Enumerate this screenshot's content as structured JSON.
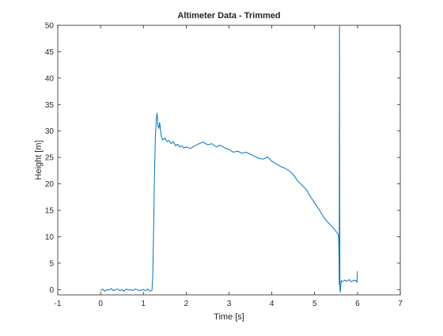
{
  "chart_data": {
    "type": "line",
    "title": "Altimeter Data - Trimmed",
    "xlabel": "Time [s]",
    "ylabel": "Height [m]",
    "xlim": [
      -1,
      7
    ],
    "ylim": [
      -1,
      50
    ],
    "xticks": [
      -1,
      0,
      1,
      2,
      3,
      4,
      5,
      6,
      7
    ],
    "yticks": [
      0,
      5,
      10,
      15,
      20,
      25,
      30,
      35,
      40,
      45,
      50
    ],
    "grid": false,
    "legend": "none",
    "line_color": "#0072bd",
    "series": [
      {
        "x": [
          0.0,
          0.05,
          0.1,
          0.15,
          0.2,
          0.25,
          0.3,
          0.35,
          0.4,
          0.45,
          0.5,
          0.55,
          0.6,
          0.65,
          0.7,
          0.75,
          0.8,
          0.85,
          0.9,
          0.95,
          1.0,
          1.05,
          1.1,
          1.15,
          1.2,
          1.22,
          1.24,
          1.26,
          1.28,
          1.3,
          1.32,
          1.34,
          1.36,
          1.38,
          1.4,
          1.42,
          1.45,
          1.5,
          1.55,
          1.6,
          1.65,
          1.7,
          1.75,
          1.8,
          1.85,
          1.9,
          1.95,
          2.0,
          2.1,
          2.2,
          2.3,
          2.4,
          2.5,
          2.6,
          2.7,
          2.8,
          2.9,
          3.0,
          3.1,
          3.2,
          3.3,
          3.4,
          3.5,
          3.6,
          3.7,
          3.8,
          3.9,
          4.0,
          4.1,
          4.2,
          4.3,
          4.4,
          4.5,
          4.6,
          4.7,
          4.8,
          4.9,
          5.0,
          5.1,
          5.2,
          5.3,
          5.4,
          5.5,
          5.55,
          5.56,
          5.57,
          5.575,
          5.58,
          5.585,
          5.59,
          5.6,
          5.62,
          5.65,
          5.7,
          5.75,
          5.8,
          5.85,
          5.9,
          5.95,
          5.97,
          5.99,
          6.0
        ],
        "y": [
          -0.2,
          0.1,
          -0.3,
          0.0,
          -0.1,
          0.2,
          -0.2,
          0.0,
          0.1,
          -0.2,
          0.0,
          -0.3,
          0.1,
          -0.1,
          0.0,
          -0.2,
          0.1,
          0.0,
          -0.2,
          -0.1,
          0.0,
          -0.2,
          0.1,
          -0.3,
          -0.2,
          3.0,
          12.0,
          22.0,
          29.0,
          32.0,
          33.4,
          31.0,
          30.5,
          31.6,
          30.2,
          29.0,
          28.3,
          28.7,
          28.0,
          28.2,
          27.6,
          28.0,
          27.2,
          27.5,
          27.0,
          27.2,
          26.8,
          27.0,
          26.7,
          27.2,
          27.6,
          27.9,
          27.4,
          27.6,
          27.0,
          27.3,
          26.8,
          26.5,
          26.0,
          26.2,
          25.8,
          26.0,
          25.6,
          25.2,
          24.8,
          24.7,
          25.1,
          24.3,
          23.8,
          23.3,
          23.0,
          22.5,
          21.8,
          20.6,
          19.8,
          19.0,
          17.6,
          16.4,
          15.2,
          13.8,
          12.8,
          12.0,
          11.0,
          10.5,
          10.0,
          6.0,
          1.0,
          50.0,
          20.0,
          0.2,
          -0.5,
          1.7,
          1.5,
          1.8,
          1.6,
          1.9,
          1.5,
          1.7,
          1.8,
          1.6,
          1.4,
          3.5
        ]
      }
    ]
  }
}
